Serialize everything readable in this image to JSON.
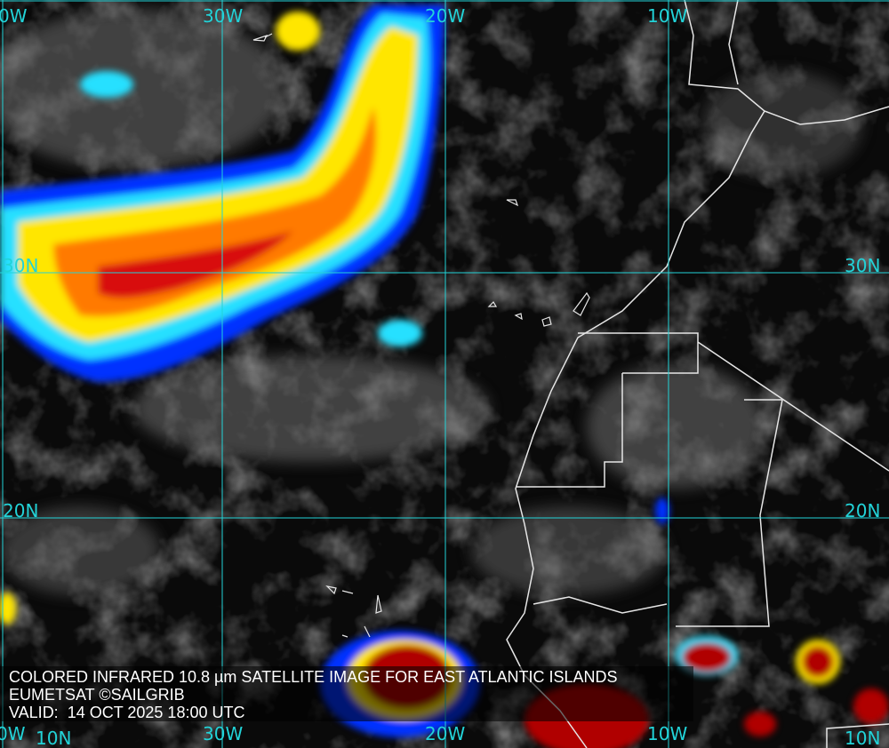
{
  "caption": {
    "line1": "COLORED INFRARED 10.8 µm SATELLITE IMAGE FOR EAST ATLANTIC ISLANDS",
    "line2": "EUMETSAT ©SAILGRIB",
    "line3": "VALID:  14 OCT 2025 18:00 UTC"
  },
  "grid": {
    "longitude_labels_top": [
      "0W",
      "30W",
      "20W",
      "10W"
    ],
    "longitude_labels_bottom": [
      "0W",
      "30W",
      "20W",
      "10W"
    ],
    "latitude_labels_left": [
      "30N",
      "20N",
      "10N"
    ],
    "latitude_labels_right": [
      "30N",
      "20N",
      "10N"
    ]
  },
  "colors": {
    "grid": "#22d3d8",
    "coastline": "#e6e6e6",
    "cold_cloud_top": "#b00000",
    "warm_cloud": "#0018ff"
  }
}
